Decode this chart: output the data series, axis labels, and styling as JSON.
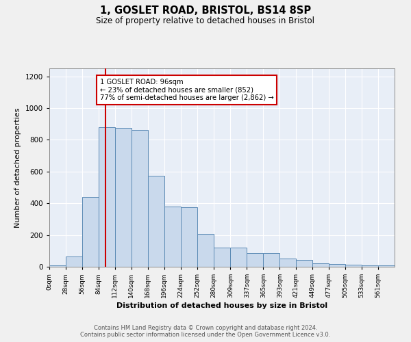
{
  "title": "1, GOSLET ROAD, BRISTOL, BS14 8SP",
  "subtitle": "Size of property relative to detached houses in Bristol",
  "xlabel": "Distribution of detached houses by size in Bristol",
  "ylabel": "Number of detached properties",
  "bar_values": [
    10,
    65,
    440,
    880,
    875,
    860,
    575,
    380,
    375,
    205,
    120,
    120,
    85,
    85,
    50,
    45,
    20,
    18,
    15,
    10,
    10
  ],
  "bin_edges": [
    0,
    28,
    56,
    84,
    112,
    140,
    168,
    196,
    224,
    252,
    280,
    309,
    337,
    365,
    393,
    421,
    449,
    477,
    505,
    533,
    561,
    589
  ],
  "tick_labels": [
    "0sqm",
    "28sqm",
    "56sqm",
    "84sqm",
    "112sqm",
    "140sqm",
    "168sqm",
    "196sqm",
    "224sqm",
    "252sqm",
    "280sqm",
    "309sqm",
    "337sqm",
    "365sqm",
    "393sqm",
    "421sqm",
    "449sqm",
    "477sqm",
    "505sqm",
    "533sqm",
    "561sqm"
  ],
  "bar_facecolor": "#c9d9ec",
  "bar_edgecolor": "#5b8ab5",
  "property_line_x": 96,
  "property_line_color": "#cc0000",
  "annotation_box_text": "1 GOSLET ROAD: 96sqm\n← 23% of detached houses are smaller (852)\n77% of semi-detached houses are larger (2,862) →",
  "annotation_box_facecolor": "#ffffff",
  "annotation_box_edgecolor": "#cc0000",
  "ylim": [
    0,
    1250
  ],
  "yticks": [
    0,
    200,
    400,
    600,
    800,
    1000,
    1200
  ],
  "background_color": "#e8eef7",
  "grid_color": "#ffffff",
  "fig_background": "#f0f0f0",
  "footer_line1": "Contains HM Land Registry data © Crown copyright and database right 2024.",
  "footer_line2": "Contains public sector information licensed under the Open Government Licence v3.0."
}
